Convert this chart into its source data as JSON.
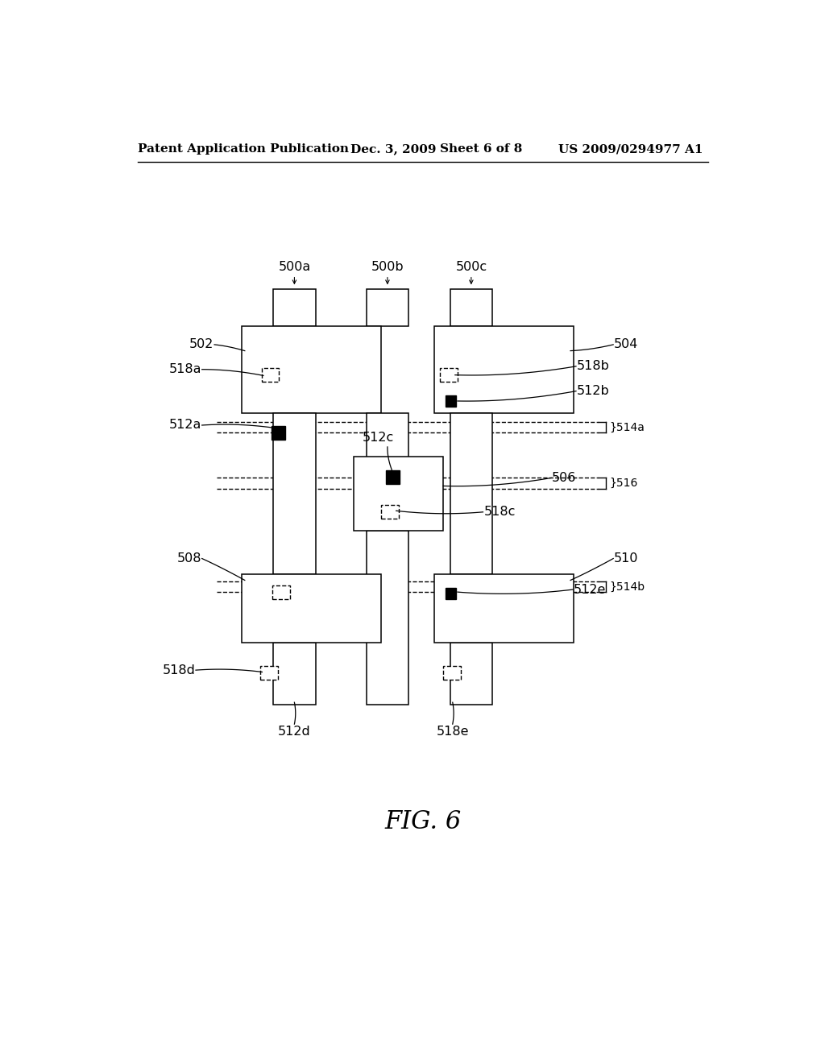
{
  "bg_color": "#ffffff",
  "line_color": "#000000",
  "header_text": "Patent Application Publication",
  "header_date": "Dec. 3, 2009",
  "header_sheet": "Sheet 6 of 8",
  "header_patent": "US 2009/0294977 A1",
  "fig_label": "FIG. 6",
  "fig_width": 10.24,
  "fig_height": 13.2,
  "lw": 1.1
}
